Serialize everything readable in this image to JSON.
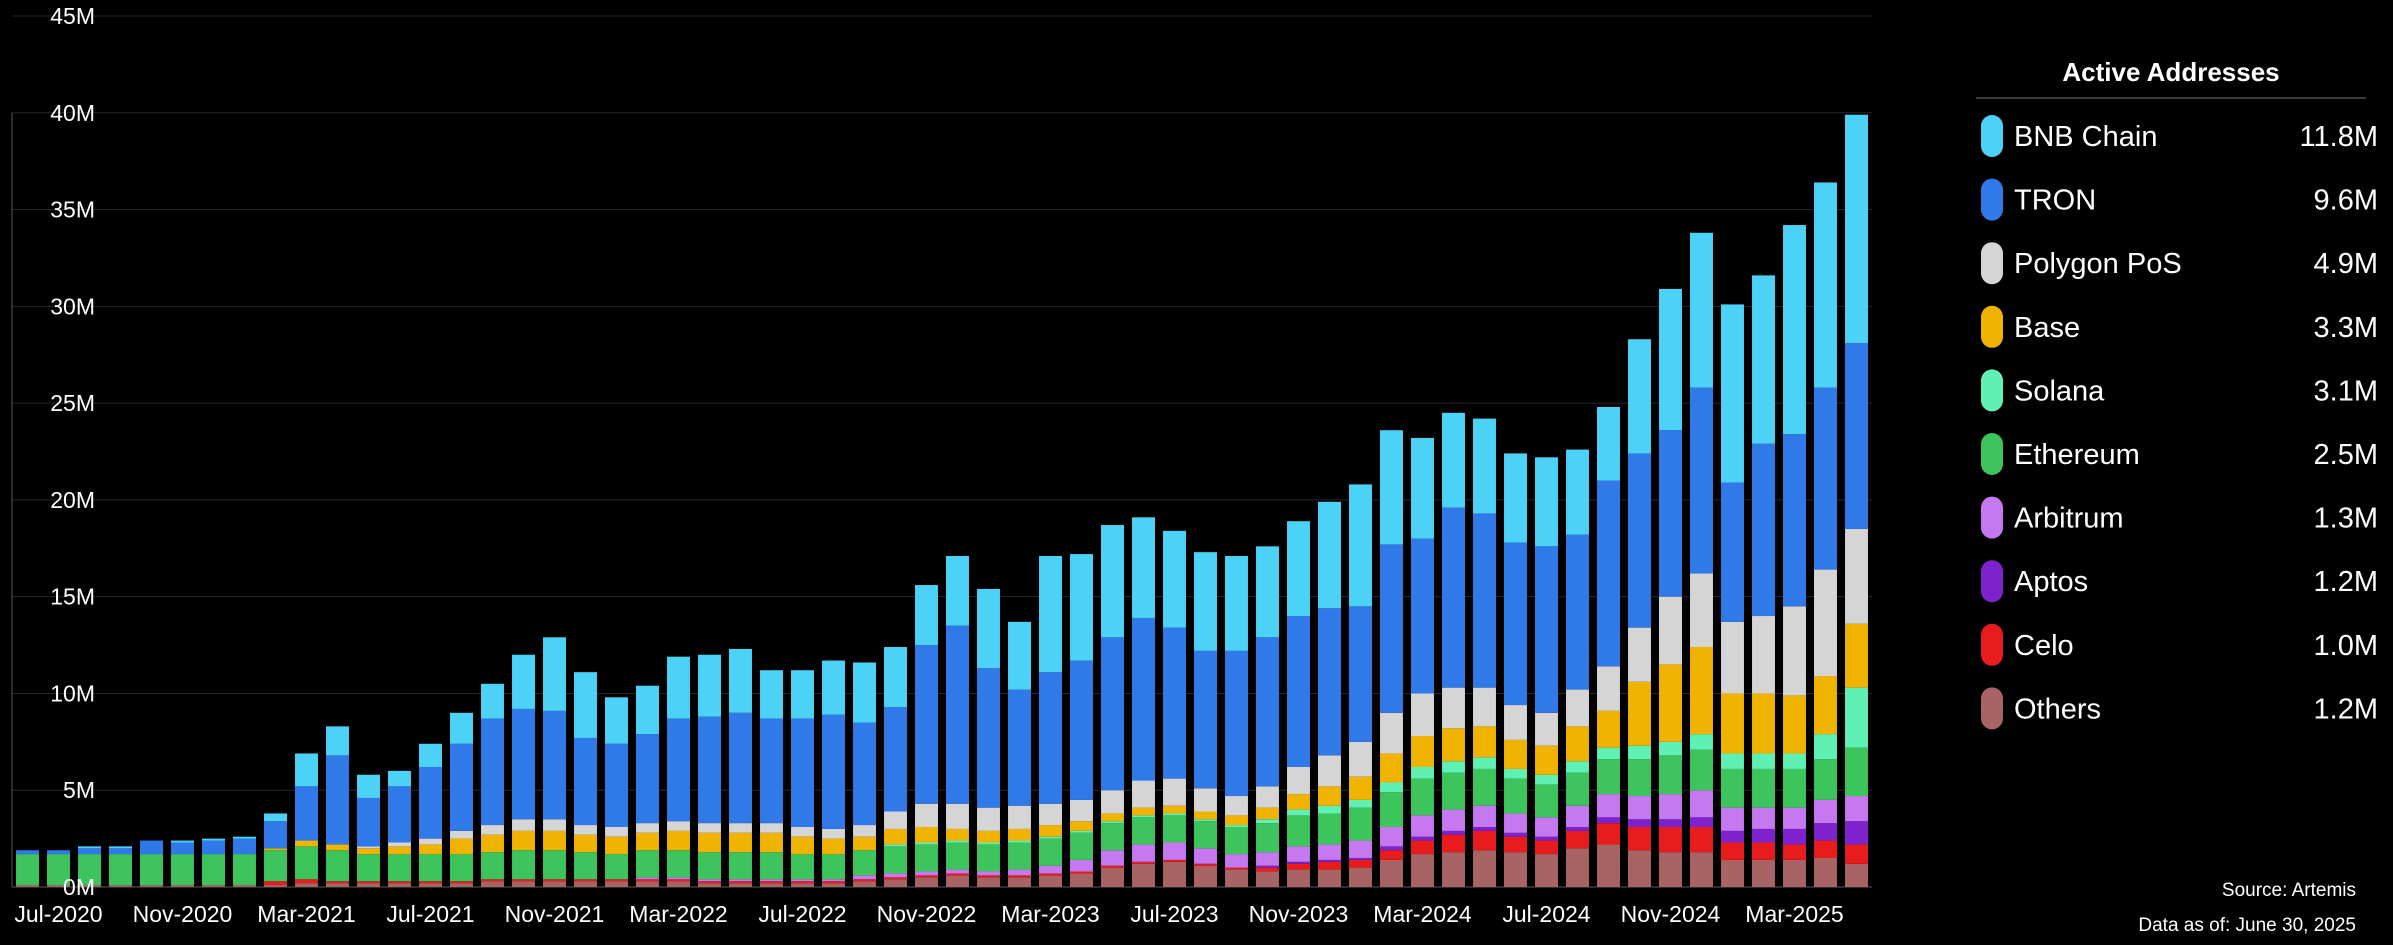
{
  "chart_data": {
    "type": "bar",
    "stacked": true,
    "title": "",
    "xlabel": "",
    "ylabel": "",
    "ylim": [
      0,
      45
    ],
    "y_unit": "M",
    "y_ticks": [
      "0M",
      "5M",
      "10M",
      "15M",
      "20M",
      "25M",
      "30M",
      "35M",
      "40M",
      "45M"
    ],
    "grid": true,
    "legend_position": "right",
    "x_tick_labels": [
      "Jul-2020",
      "Nov-2020",
      "Mar-2021",
      "Jul-2021",
      "Nov-2021",
      "Mar-2022",
      "Jul-2022",
      "Nov-2022",
      "Mar-2023",
      "Jul-2023",
      "Nov-2023",
      "Mar-2024",
      "Jul-2024",
      "Nov-2024",
      "Mar-2025"
    ],
    "categories": [
      "Jun-2020",
      "Jul-2020",
      "Aug-2020",
      "Sep-2020",
      "Oct-2020",
      "Nov-2020",
      "Dec-2020",
      "Jan-2021",
      "Feb-2021",
      "Mar-2021",
      "Apr-2021",
      "May-2021",
      "Jun-2021",
      "Jul-2021",
      "Aug-2021",
      "Sep-2021",
      "Oct-2021",
      "Nov-2021",
      "Dec-2021",
      "Jan-2022",
      "Feb-2022",
      "Mar-2022",
      "Apr-2022",
      "May-2022",
      "Jun-2022",
      "Jul-2022",
      "Aug-2022",
      "Sep-2022",
      "Oct-2022",
      "Nov-2022",
      "Dec-2022",
      "Jan-2023",
      "Feb-2023",
      "Mar-2023",
      "Apr-2023",
      "May-2023",
      "Jun-2023",
      "Jul-2023",
      "Aug-2023",
      "Sep-2023",
      "Oct-2023",
      "Nov-2023",
      "Dec-2023",
      "Jan-2024",
      "Feb-2024",
      "Mar-2024",
      "Apr-2024",
      "May-2024",
      "Jun-2024",
      "Jul-2024",
      "Aug-2024",
      "Sep-2024",
      "Oct-2024",
      "Nov-2024",
      "Dec-2024",
      "Jan-2025",
      "Feb-2025",
      "Mar-2025",
      "Apr-2025",
      "May-2025"
    ],
    "series": [
      {
        "name": "Others",
        "color": "#a86464",
        "values": [
          0.1,
          0.1,
          0.1,
          0.1,
          0.1,
          0.1,
          0.1,
          0.1,
          0.1,
          0.2,
          0.2,
          0.2,
          0.2,
          0.2,
          0.2,
          0.3,
          0.3,
          0.3,
          0.3,
          0.3,
          0.3,
          0.3,
          0.2,
          0.2,
          0.2,
          0.2,
          0.2,
          0.3,
          0.4,
          0.5,
          0.6,
          0.5,
          0.5,
          0.6,
          0.7,
          1.0,
          1.2,
          1.3,
          1.1,
          0.9,
          0.8,
          0.9,
          0.9,
          1.0,
          1.4,
          1.7,
          1.8,
          1.9,
          1.8,
          1.7,
          2.0,
          2.2,
          1.9,
          1.8,
          1.8,
          1.4,
          1.4,
          1.4,
          1.5,
          1.2
        ]
      },
      {
        "name": "Celo",
        "color": "#e81c1c",
        "values": [
          0,
          0,
          0,
          0,
          0,
          0,
          0,
          0,
          0.2,
          0.2,
          0.1,
          0.1,
          0.1,
          0.1,
          0.1,
          0.1,
          0.1,
          0.1,
          0.1,
          0.1,
          0.1,
          0.1,
          0.1,
          0.1,
          0.1,
          0.1,
          0.1,
          0.1,
          0.1,
          0.1,
          0.1,
          0.1,
          0.1,
          0.1,
          0.1,
          0.1,
          0.1,
          0.1,
          0.1,
          0.1,
          0.2,
          0.3,
          0.4,
          0.4,
          0.5,
          0.7,
          0.9,
          1.0,
          0.8,
          0.7,
          0.9,
          1.1,
          1.2,
          1.3,
          1.3,
          0.9,
          0.9,
          0.8,
          0.9,
          1.0
        ]
      },
      {
        "name": "Aptos",
        "color": "#7e22ce",
        "values": [
          0,
          0,
          0,
          0,
          0,
          0,
          0,
          0,
          0,
          0,
          0,
          0,
          0,
          0,
          0,
          0,
          0,
          0,
          0,
          0,
          0,
          0,
          0,
          0,
          0,
          0,
          0,
          0,
          0,
          0,
          0,
          0,
          0,
          0,
          0,
          0,
          0,
          0,
          0,
          0,
          0.1,
          0.1,
          0.1,
          0.1,
          0.2,
          0.2,
          0.2,
          0.2,
          0.2,
          0.2,
          0.2,
          0.3,
          0.4,
          0.4,
          0.5,
          0.6,
          0.7,
          0.8,
          0.9,
          1.2
        ]
      },
      {
        "name": "Arbitrum",
        "color": "#c678f0",
        "values": [
          0,
          0,
          0,
          0,
          0,
          0,
          0,
          0,
          0,
          0,
          0,
          0,
          0,
          0,
          0,
          0,
          0,
          0,
          0,
          0,
          0.1,
          0.1,
          0.1,
          0.1,
          0.1,
          0.1,
          0.1,
          0.2,
          0.2,
          0.2,
          0.2,
          0.2,
          0.3,
          0.4,
          0.6,
          0.8,
          0.9,
          0.9,
          0.8,
          0.7,
          0.7,
          0.8,
          0.8,
          0.9,
          1.0,
          1.1,
          1.1,
          1.1,
          1.0,
          1.0,
          1.1,
          1.2,
          1.2,
          1.3,
          1.4,
          1.2,
          1.1,
          1.1,
          1.2,
          1.3
        ]
      },
      {
        "name": "Ethereum",
        "color": "#3ec45c",
        "values": [
          1.6,
          1.6,
          1.6,
          1.6,
          1.6,
          1.6,
          1.6,
          1.6,
          1.6,
          1.7,
          1.6,
          1.4,
          1.4,
          1.4,
          1.4,
          1.4,
          1.5,
          1.5,
          1.4,
          1.3,
          1.4,
          1.4,
          1.4,
          1.4,
          1.4,
          1.3,
          1.3,
          1.3,
          1.4,
          1.4,
          1.4,
          1.4,
          1.4,
          1.4,
          1.4,
          1.4,
          1.4,
          1.4,
          1.4,
          1.4,
          1.5,
          1.6,
          1.6,
          1.7,
          1.8,
          1.9,
          1.9,
          1.9,
          1.8,
          1.7,
          1.7,
          1.8,
          1.9,
          2.0,
          2.1,
          2.0,
          2.0,
          2.0,
          2.1,
          2.5
        ]
      },
      {
        "name": "Solana",
        "color": "#5ff0b4",
        "values": [
          0,
          0,
          0,
          0,
          0,
          0,
          0,
          0,
          0,
          0,
          0,
          0,
          0,
          0,
          0,
          0,
          0,
          0,
          0,
          0,
          0,
          0,
          0,
          0,
          0,
          0,
          0,
          0,
          0.1,
          0.1,
          0.1,
          0.1,
          0.1,
          0.1,
          0.1,
          0.1,
          0.1,
          0.1,
          0.1,
          0.1,
          0.2,
          0.3,
          0.4,
          0.4,
          0.5,
          0.6,
          0.6,
          0.6,
          0.5,
          0.5,
          0.6,
          0.6,
          0.7,
          0.7,
          0.8,
          0.8,
          0.8,
          0.8,
          1.3,
          3.1
        ]
      },
      {
        "name": "Base",
        "color": "#f0b400",
        "values": [
          0,
          0,
          0,
          0,
          0,
          0,
          0,
          0,
          0.1,
          0.3,
          0.3,
          0.3,
          0.4,
          0.5,
          0.8,
          0.9,
          1.0,
          1.0,
          0.9,
          0.9,
          0.9,
          1.0,
          1.0,
          1.0,
          1.0,
          0.9,
          0.8,
          0.7,
          0.8,
          0.8,
          0.6,
          0.6,
          0.6,
          0.6,
          0.5,
          0.4,
          0.4,
          0.4,
          0.4,
          0.5,
          0.6,
          0.8,
          1.0,
          1.2,
          1.5,
          1.6,
          1.7,
          1.6,
          1.5,
          1.5,
          1.8,
          1.9,
          3.3,
          4.0,
          4.5,
          3.1,
          3.1,
          3.0,
          3.0,
          3.3
        ]
      },
      {
        "name": "Polygon PoS",
        "color": "#d5d5d5",
        "values": [
          0,
          0,
          0,
          0,
          0,
          0,
          0,
          0,
          0,
          0,
          0,
          0.1,
          0.2,
          0.3,
          0.4,
          0.5,
          0.6,
          0.6,
          0.5,
          0.5,
          0.5,
          0.5,
          0.5,
          0.5,
          0.5,
          0.5,
          0.5,
          0.6,
          0.9,
          1.2,
          1.3,
          1.2,
          1.2,
          1.1,
          1.1,
          1.2,
          1.4,
          1.4,
          1.2,
          1.0,
          1.1,
          1.4,
          1.6,
          1.8,
          2.1,
          2.2,
          2.1,
          2.0,
          1.8,
          1.7,
          1.9,
          2.3,
          2.8,
          3.5,
          3.8,
          3.7,
          4.0,
          4.6,
          5.5,
          4.9
        ]
      },
      {
        "name": "TRON",
        "color": "#2f7ae8",
        "values": [
          0.2,
          0.2,
          0.3,
          0.3,
          0.7,
          0.6,
          0.7,
          0.8,
          1.4,
          2.8,
          4.6,
          2.5,
          2.9,
          3.7,
          4.5,
          5.5,
          5.7,
          5.6,
          4.5,
          4.3,
          4.6,
          5.3,
          5.5,
          5.7,
          5.4,
          5.6,
          5.9,
          5.3,
          5.4,
          8.2,
          9.2,
          7.2,
          6.0,
          6.8,
          7.2,
          7.9,
          8.4,
          7.8,
          7.1,
          7.5,
          7.7,
          7.8,
          7.6,
          7.0,
          8.7,
          8.0,
          9.3,
          9.0,
          8.4,
          8.6,
          8.0,
          9.6,
          9.0,
          8.6,
          9.6,
          7.2,
          8.9,
          8.9,
          9.4,
          9.6
        ]
      },
      {
        "name": "BNB Chain",
        "color": "#4cd2f7",
        "values": [
          0,
          0,
          0.1,
          0.1,
          0,
          0.1,
          0.1,
          0.1,
          0.4,
          1.7,
          1.5,
          1.2,
          0.8,
          1.2,
          1.6,
          1.8,
          2.8,
          3.8,
          3.4,
          2.4,
          2.5,
          3.2,
          3.2,
          3.3,
          2.5,
          2.5,
          2.8,
          3.1,
          3.1,
          3.1,
          3.6,
          4.1,
          3.5,
          6.0,
          5.5,
          5.8,
          5.2,
          5.0,
          5.1,
          4.9,
          4.7,
          4.9,
          5.5,
          6.3,
          5.9,
          5.2,
          4.9,
          4.9,
          4.6,
          4.6,
          4.4,
          3.8,
          5.9,
          7.3,
          8.0,
          9.2,
          8.7,
          10.8,
          10.6,
          11.8
        ]
      }
    ]
  },
  "legend": {
    "title": "Active Addresses",
    "items": [
      {
        "label": "BNB Chain",
        "value": "11.8M",
        "color": "#4cd2f7"
      },
      {
        "label": "TRON",
        "value": "9.6M",
        "color": "#2f7ae8"
      },
      {
        "label": "Polygon PoS",
        "value": "4.9M",
        "color": "#d5d5d5"
      },
      {
        "label": "Base",
        "value": "3.3M",
        "color": "#f0b400"
      },
      {
        "label": "Solana",
        "value": "3.1M",
        "color": "#5ff0b4"
      },
      {
        "label": "Ethereum",
        "value": "2.5M",
        "color": "#3ec45c"
      },
      {
        "label": "Arbitrum",
        "value": "1.3M",
        "color": "#c678f0"
      },
      {
        "label": "Aptos",
        "value": "1.2M",
        "color": "#7e22ce"
      },
      {
        "label": "Celo",
        "value": "1.0M",
        "color": "#e81c1c"
      },
      {
        "label": "Others",
        "value": "1.2M",
        "color": "#a86464"
      }
    ]
  },
  "footer": {
    "source": "Source: Artemis",
    "as_of": "Data as of: June 30, 2025"
  }
}
